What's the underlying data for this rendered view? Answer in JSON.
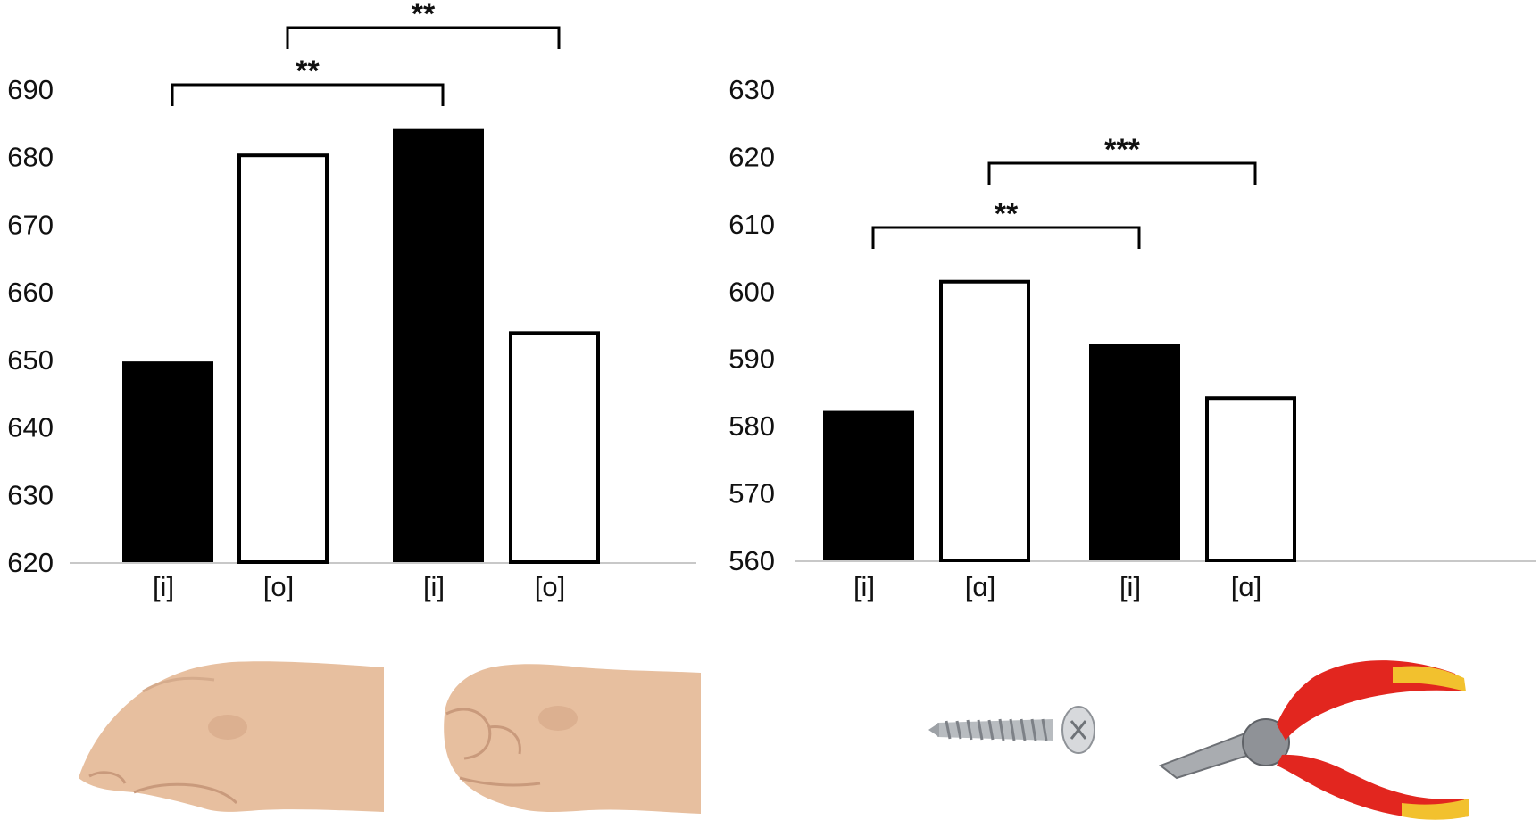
{
  "chart_data": [
    {
      "type": "bar",
      "ylim": [
        620,
        690
      ],
      "y_ticks": [
        620,
        630,
        640,
        650,
        660,
        670,
        680,
        690
      ],
      "categories": [
        "[i]",
        "[o]",
        "[i]",
        "[o]"
      ],
      "values": [
        649.7,
        680.2,
        684.1,
        653.9
      ],
      "fill": [
        "#000000",
        "#ffffff",
        "#000000",
        "#ffffff"
      ],
      "significance": [
        {
          "from": 0,
          "to": 2,
          "label": "**",
          "level": 1
        },
        {
          "from": 1,
          "to": 3,
          "label": "**",
          "level": 2
        }
      ],
      "illustrations": [
        "open-hand-image",
        "fist-image"
      ],
      "grid": false
    },
    {
      "type": "bar",
      "ylim": [
        560,
        630
      ],
      "y_ticks": [
        560,
        570,
        580,
        590,
        600,
        610,
        620,
        630
      ],
      "categories": [
        "[i]",
        "[ɑ]",
        "[i]",
        "[ɑ]"
      ],
      "values": [
        582.2,
        601.4,
        592.1,
        584.1
      ],
      "fill": [
        "#000000",
        "#ffffff",
        "#000000",
        "#ffffff"
      ],
      "significance": [
        {
          "from": 0,
          "to": 2,
          "label": "**",
          "level": 1
        },
        {
          "from": 1,
          "to": 3,
          "label": "***",
          "level": 2
        }
      ],
      "illustrations": [
        "screw-image",
        "pliers-image"
      ],
      "grid": false
    }
  ],
  "colors": {
    "bar_dark": "#000000",
    "bar_light": "#ffffff",
    "axis": "#c8c8c8",
    "skin": "#e9c3a4",
    "handle_red": "#e2261f",
    "handle_yellow": "#f2c12e",
    "metal": "#a9acb0"
  }
}
